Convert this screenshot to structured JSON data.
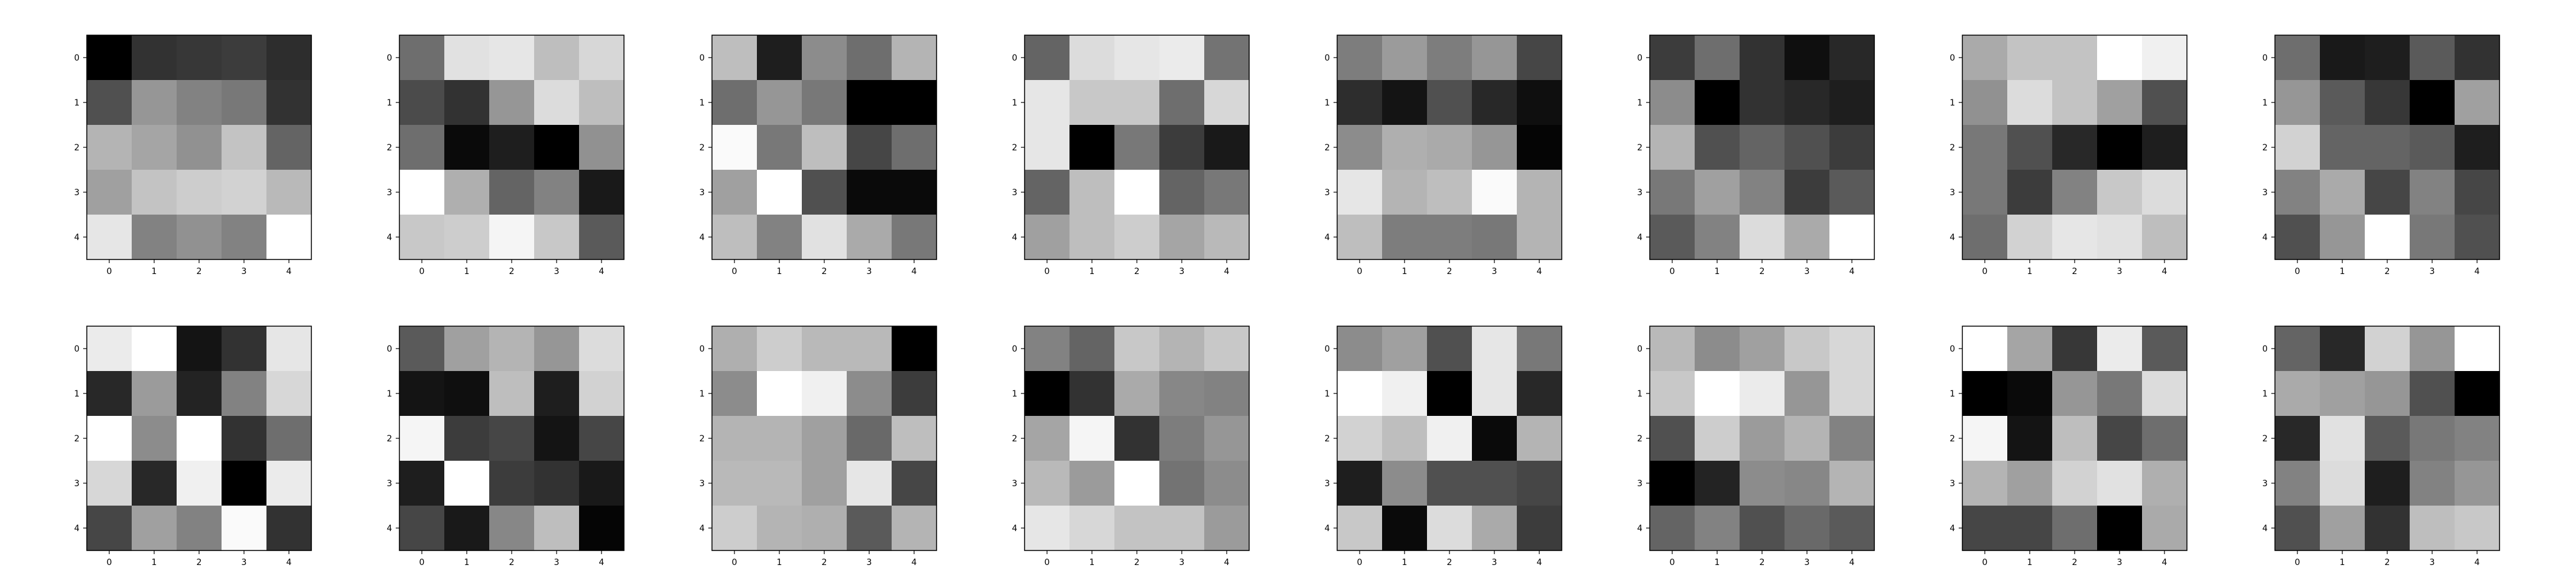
{
  "chart_data": [
    {
      "type": "heatmap",
      "x": [
        0,
        1,
        2,
        3,
        4
      ],
      "y": [
        0,
        1,
        2,
        3,
        4
      ],
      "colormap": "gray",
      "values": [
        [
          0,
          50,
          55,
          60,
          45
        ],
        [
          80,
          150,
          130,
          120,
          50
        ],
        [
          180,
          165,
          145,
          195,
          100
        ],
        [
          160,
          195,
          205,
          210,
          185
        ],
        [
          230,
          130,
          145,
          130,
          255
        ]
      ]
    },
    {
      "type": "heatmap",
      "x": [
        0,
        1,
        2,
        3,
        4
      ],
      "y": [
        0,
        1,
        2,
        3,
        4
      ],
      "colormap": "gray",
      "values": [
        [
          110,
          225,
          230,
          190,
          215
        ],
        [
          75,
          50,
          150,
          220,
          190
        ],
        [
          110,
          10,
          30,
          0,
          145
        ],
        [
          255,
          175,
          100,
          130,
          25
        ],
        [
          200,
          205,
          245,
          200,
          90
        ]
      ]
    },
    {
      "type": "heatmap",
      "x": [
        0,
        1,
        2,
        3,
        4
      ],
      "y": [
        0,
        1,
        2,
        3,
        4
      ],
      "colormap": "gray",
      "values": [
        [
          190,
          30,
          140,
          110,
          180
        ],
        [
          110,
          150,
          120,
          0,
          0
        ],
        [
          250,
          120,
          190,
          70,
          110
        ],
        [
          160,
          255,
          80,
          10,
          10
        ],
        [
          190,
          130,
          225,
          170,
          120
        ]
      ]
    },
    {
      "type": "heatmap",
      "x": [
        0,
        1,
        2,
        3,
        4
      ],
      "y": [
        0,
        1,
        2,
        3,
        4
      ],
      "colormap": "gray",
      "values": [
        [
          100,
          220,
          230,
          235,
          115
        ],
        [
          230,
          200,
          200,
          110,
          215
        ],
        [
          230,
          0,
          120,
          60,
          25
        ],
        [
          100,
          190,
          255,
          100,
          120
        ],
        [
          160,
          190,
          205,
          165,
          185
        ]
      ]
    },
    {
      "type": "heatmap",
      "x": [
        0,
        1,
        2,
        3,
        4
      ],
      "y": [
        0,
        1,
        2,
        3,
        4
      ],
      "colormap": "gray",
      "values": [
        [
          125,
          155,
          125,
          150,
          70
        ],
        [
          45,
          20,
          80,
          40,
          15
        ],
        [
          140,
          175,
          170,
          150,
          5
        ],
        [
          230,
          180,
          190,
          250,
          180
        ],
        [
          190,
          125,
          125,
          120,
          180
        ]
      ]
    },
    {
      "type": "heatmap",
      "x": [
        0,
        1,
        2,
        3,
        4
      ],
      "y": [
        0,
        1,
        2,
        3,
        4
      ],
      "colormap": "gray",
      "values": [
        [
          60,
          110,
          50,
          15,
          40
        ],
        [
          140,
          0,
          50,
          40,
          30
        ],
        [
          180,
          80,
          100,
          80,
          60
        ],
        [
          120,
          160,
          130,
          60,
          90
        ],
        [
          90,
          130,
          220,
          170,
          255
        ]
      ]
    },
    {
      "type": "heatmap",
      "x": [
        0,
        1,
        2,
        3,
        4
      ],
      "y": [
        0,
        1,
        2,
        3,
        4
      ],
      "colormap": "gray",
      "values": [
        [
          170,
          195,
          195,
          255,
          240
        ],
        [
          145,
          220,
          195,
          160,
          80
        ],
        [
          120,
          80,
          40,
          0,
          30
        ],
        [
          120,
          60,
          130,
          200,
          220
        ],
        [
          110,
          210,
          230,
          225,
          190
        ]
      ]
    },
    {
      "type": "heatmap",
      "x": [
        0,
        1,
        2,
        3,
        4
      ],
      "y": [
        0,
        1,
        2,
        3,
        4
      ],
      "colormap": "gray",
      "values": [
        [
          110,
          25,
          30,
          90,
          50
        ],
        [
          150,
          90,
          55,
          0,
          160
        ],
        [
          210,
          100,
          100,
          90,
          30
        ],
        [
          130,
          170,
          70,
          130,
          70
        ],
        [
          80,
          150,
          255,
          120,
          80
        ]
      ]
    },
    {
      "type": "heatmap",
      "x": [
        0,
        1,
        2,
        3,
        4
      ],
      "y": [
        0,
        1,
        2,
        3,
        4
      ],
      "colormap": "gray",
      "values": [
        [
          235,
          255,
          20,
          50,
          230
        ],
        [
          40,
          155,
          35,
          130,
          215
        ],
        [
          255,
          140,
          255,
          50,
          110
        ],
        [
          215,
          40,
          240,
          0,
          235
        ],
        [
          70,
          160,
          130,
          250,
          50
        ]
      ]
    },
    {
      "type": "heatmap",
      "x": [
        0,
        1,
        2,
        3,
        4
      ],
      "y": [
        0,
        1,
        2,
        3,
        4
      ],
      "colormap": "gray",
      "values": [
        [
          90,
          160,
          180,
          150,
          220
        ],
        [
          20,
          15,
          190,
          30,
          210
        ],
        [
          245,
          60,
          70,
          20,
          70
        ],
        [
          30,
          255,
          60,
          50,
          25
        ],
        [
          70,
          25,
          135,
          190,
          5
        ]
      ]
    },
    {
      "type": "heatmap",
      "x": [
        0,
        1,
        2,
        3,
        4
      ],
      "y": [
        0,
        1,
        2,
        3,
        4
      ],
      "colormap": "gray",
      "values": [
        [
          175,
          205,
          185,
          185,
          0
        ],
        [
          140,
          255,
          240,
          140,
          60
        ],
        [
          180,
          180,
          160,
          105,
          190
        ],
        [
          185,
          185,
          160,
          230,
          70
        ],
        [
          205,
          180,
          175,
          90,
          180
        ]
      ]
    },
    {
      "type": "heatmap",
      "x": [
        0,
        1,
        2,
        3,
        4
      ],
      "y": [
        0,
        1,
        2,
        3,
        4
      ],
      "colormap": "gray",
      "values": [
        [
          130,
          100,
          200,
          180,
          200
        ],
        [
          0,
          50,
          170,
          135,
          130
        ],
        [
          165,
          245,
          50,
          125,
          150
        ],
        [
          185,
          155,
          255,
          115,
          140
        ],
        [
          230,
          215,
          195,
          195,
          155
        ]
      ]
    },
    {
      "type": "heatmap",
      "x": [
        0,
        1,
        2,
        3,
        4
      ],
      "y": [
        0,
        1,
        2,
        3,
        4
      ],
      "colormap": "gray",
      "values": [
        [
          140,
          160,
          80,
          230,
          120
        ],
        [
          255,
          240,
          0,
          230,
          40
        ],
        [
          210,
          190,
          240,
          10,
          180
        ],
        [
          30,
          140,
          80,
          80,
          70
        ],
        [
          200,
          10,
          220,
          170,
          60
        ]
      ]
    },
    {
      "type": "heatmap",
      "x": [
        0,
        1,
        2,
        3,
        4
      ],
      "y": [
        0,
        1,
        2,
        3,
        4
      ],
      "colormap": "gray",
      "values": [
        [
          185,
          140,
          160,
          200,
          215
        ],
        [
          200,
          255,
          235,
          150,
          215
        ],
        [
          80,
          205,
          155,
          180,
          130
        ],
        [
          0,
          35,
          140,
          135,
          180
        ],
        [
          100,
          130,
          80,
          105,
          90
        ]
      ]
    },
    {
      "type": "heatmap",
      "x": [
        0,
        1,
        2,
        3,
        4
      ],
      "y": [
        0,
        1,
        2,
        3,
        4
      ],
      "colormap": "gray",
      "values": [
        [
          255,
          165,
          55,
          235,
          90
        ],
        [
          0,
          10,
          150,
          120,
          220
        ],
        [
          245,
          20,
          190,
          70,
          110
        ],
        [
          180,
          160,
          210,
          225,
          175
        ],
        [
          70,
          70,
          110,
          0,
          170
        ]
      ]
    },
    {
      "type": "heatmap",
      "x": [
        0,
        1,
        2,
        3,
        4
      ],
      "y": [
        0,
        1,
        2,
        3,
        4
      ],
      "colormap": "gray",
      "values": [
        [
          100,
          40,
          210,
          150,
          255
        ],
        [
          170,
          160,
          150,
          80,
          0
        ],
        [
          40,
          225,
          90,
          120,
          130
        ],
        [
          130,
          220,
          30,
          130,
          150
        ],
        [
          80,
          160,
          50,
          190,
          200
        ]
      ]
    }
  ]
}
